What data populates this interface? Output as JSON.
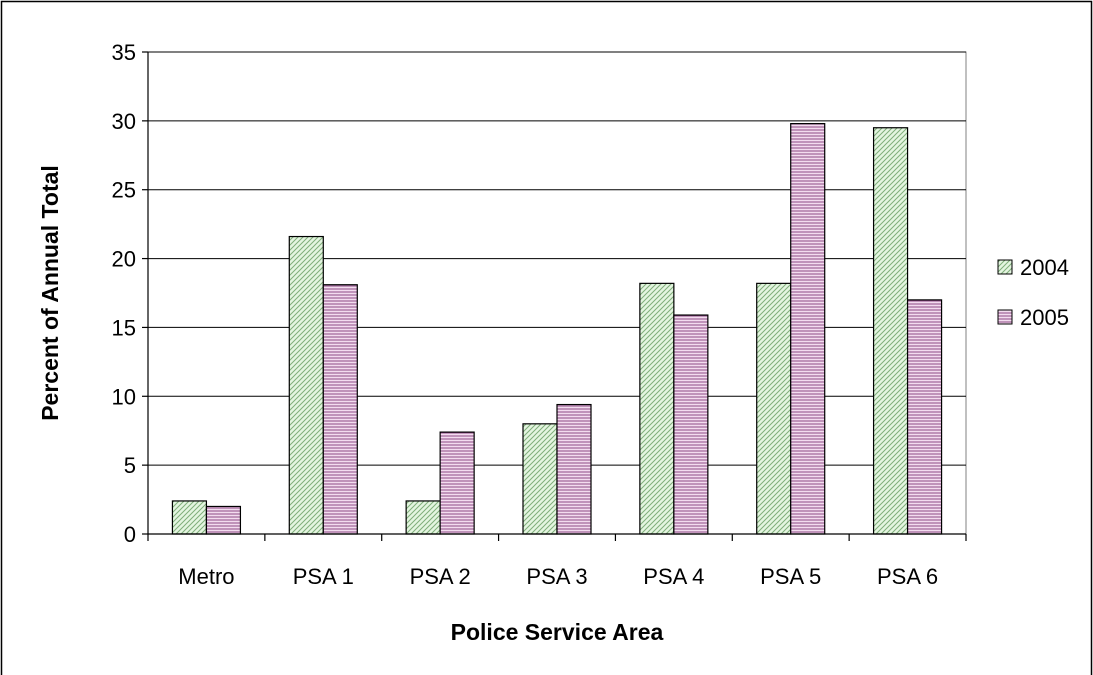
{
  "chart_data": {
    "type": "bar",
    "title": "",
    "xlabel": "Police Service Area",
    "ylabel": "Percent of Annual Total",
    "categories": [
      "Metro",
      "PSA 1",
      "PSA 2",
      "PSA 3",
      "PSA 4",
      "PSA 5",
      "PSA 6"
    ],
    "series": [
      {
        "name": "2004",
        "values": [
          2.4,
          21.6,
          2.4,
          8.0,
          18.2,
          18.2,
          29.5
        ],
        "color": "#d6f0d2",
        "pattern": "diagonal-green"
      },
      {
        "name": "2005",
        "values": [
          2.0,
          18.1,
          7.4,
          9.4,
          15.9,
          29.8,
          17.0
        ],
        "color": "#e8c8e4",
        "pattern": "horizontal-pink"
      }
    ],
    "ylim": [
      0,
      35
    ],
    "yticks": [
      0,
      5,
      10,
      15,
      20,
      25,
      30,
      35
    ],
    "grid": true,
    "legend_position": "right"
  }
}
